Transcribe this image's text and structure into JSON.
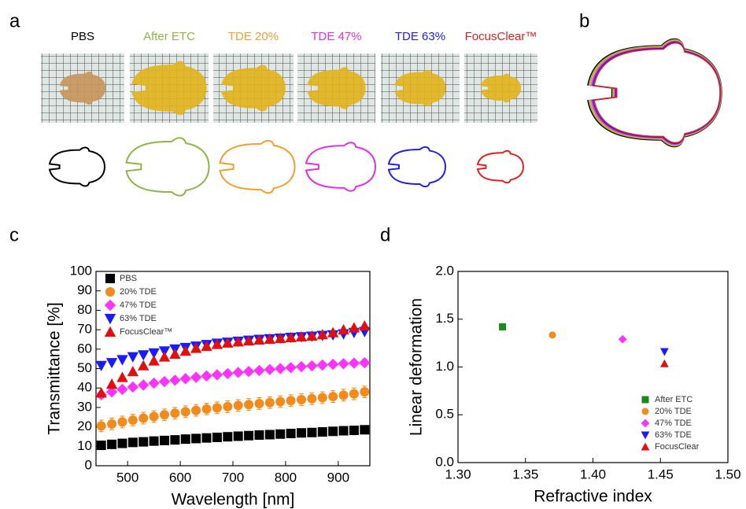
{
  "panels": {
    "a": {
      "label": "a",
      "samples": [
        {
          "name": "PBS",
          "color": "#000000"
        },
        {
          "name": "After ETC",
          "color": "#8db54a"
        },
        {
          "name": "TDE 20%",
          "color": "#f0a030"
        },
        {
          "name": "TDE 47%",
          "color": "#e030e0"
        },
        {
          "name": "TDE 63%",
          "color": "#2020e0"
        },
        {
          "name": "FocusClear™",
          "color": "#e02020"
        }
      ]
    },
    "b": {
      "label": "b"
    }
  },
  "chart_data": [
    {
      "type": "scatter",
      "label": "c",
      "xlabel": "Wavelength [nm]",
      "ylabel": "Transmittance [%]",
      "xlim": [
        440,
        960
      ],
      "xticks": [
        500,
        600,
        700,
        800,
        900
      ],
      "ylim": [
        0,
        100
      ],
      "yticks": [
        0,
        10,
        20,
        30,
        40,
        50,
        60,
        70,
        80,
        90,
        100
      ],
      "x": [
        450,
        470,
        490,
        510,
        530,
        550,
        570,
        590,
        610,
        630,
        650,
        670,
        690,
        710,
        730,
        750,
        770,
        790,
        810,
        830,
        850,
        870,
        890,
        910,
        930,
        950
      ],
      "legend": "upper left",
      "series": [
        {
          "name": "PBS",
          "color": "#000000",
          "marker": "square",
          "values": [
            10.5,
            11,
            11.5,
            12,
            12.3,
            12.7,
            13,
            13.3,
            13.7,
            14,
            14.3,
            14.6,
            14.9,
            15.2,
            15.5,
            15.8,
            16,
            16.3,
            16.6,
            16.9,
            17.1,
            17.4,
            17.7,
            18,
            18.2,
            18.5
          ]
        },
        {
          "name": "20% TDE",
          "color": "#f28a1c",
          "marker": "circle",
          "values": [
            20.5,
            21.5,
            22.5,
            23.5,
            24.5,
            25.3,
            26.2,
            27,
            27.8,
            28.5,
            29.2,
            29.8,
            30.4,
            31,
            31.5,
            32,
            32.5,
            33,
            33.5,
            34,
            34.5,
            35,
            35.6,
            36.3,
            37,
            38
          ],
          "errors": [
            3,
            3,
            3,
            3,
            3,
            3,
            3,
            3,
            3,
            3,
            3,
            3,
            3,
            3,
            3,
            3,
            3,
            3,
            3,
            3,
            3,
            3,
            3,
            3,
            3,
            3
          ]
        },
        {
          "name": "47% TDE",
          "color": "#ff33ff",
          "marker": "diamond",
          "values": [
            36.5,
            38,
            39.3,
            40.5,
            41.5,
            42.5,
            43.3,
            44,
            44.8,
            45.5,
            46.2,
            46.8,
            47.4,
            48,
            48.5,
            49,
            49.5,
            50,
            50.5,
            51,
            51.4,
            51.8,
            52.2,
            52.5,
            52.8,
            53
          ]
        },
        {
          "name": "63% TDE",
          "color": "#1a1aff",
          "marker": "triangle-down",
          "values": [
            51.5,
            53,
            54.5,
            56,
            57,
            58,
            59,
            60,
            60.8,
            61.5,
            62.3,
            63,
            63.5,
            64,
            64.5,
            65,
            65.3,
            65.6,
            66,
            66.3,
            66.6,
            67,
            67.3,
            67.8,
            68.5,
            69
          ]
        },
        {
          "name": "FocusClear™",
          "color": "#e01010",
          "marker": "triangle-up",
          "values": [
            37.5,
            42,
            45.5,
            48.5,
            51.5,
            54,
            56,
            57.5,
            59,
            60.5,
            61.5,
            62.5,
            63.2,
            63.8,
            64.3,
            64.8,
            65.2,
            65.6,
            66,
            66.4,
            66.8,
            67.5,
            68.5,
            70,
            71,
            72
          ]
        }
      ]
    },
    {
      "type": "scatter",
      "label": "d",
      "xlabel": "Refractive index",
      "ylabel": "Linear deformation",
      "xlim": [
        1.3,
        1.5
      ],
      "xticks": [
        {
          "value": 1.3,
          "label": "1.30"
        },
        {
          "value": 1.35,
          "label": "1.35"
        },
        {
          "value": 1.4,
          "label": "1.40"
        },
        {
          "value": 1.45,
          "label": "1.45"
        },
        {
          "value": 1.5,
          "label": "1.50"
        }
      ],
      "ylim": [
        0,
        2
      ],
      "yticks": [
        {
          "value": 0,
          "label": "0.0"
        },
        {
          "value": 0.5,
          "label": "0.5"
        },
        {
          "value": 1,
          "label": "1.0"
        },
        {
          "value": 1.5,
          "label": "1.5"
        },
        {
          "value": 2,
          "label": "2.0"
        }
      ],
      "legend": "lower right",
      "series": [
        {
          "name": "After ETC",
          "color": "#1a8a1a",
          "marker": "square",
          "x": [
            1.333
          ],
          "values": [
            1.42
          ]
        },
        {
          "name": "20% TDE",
          "color": "#f28a1c",
          "marker": "circle",
          "x": [
            1.37
          ],
          "values": [
            1.335
          ]
        },
        {
          "name": "47% TDE",
          "color": "#ff33ff",
          "marker": "diamond",
          "x": [
            1.422
          ],
          "values": [
            1.29
          ]
        },
        {
          "name": "63% TDE",
          "color": "#1a1aff",
          "marker": "triangle-down",
          "x": [
            1.453
          ],
          "values": [
            1.16
          ]
        },
        {
          "name": "FocusClear",
          "color": "#e01010",
          "marker": "triangle-up",
          "x": [
            1.453
          ],
          "values": [
            1.035
          ]
        }
      ]
    }
  ]
}
